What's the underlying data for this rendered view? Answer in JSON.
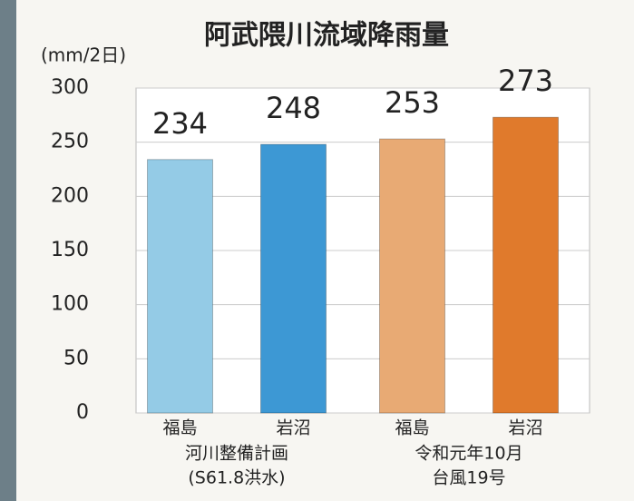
{
  "chart_data": {
    "type": "bar",
    "title": "阿武隈川流域降雨量",
    "y_unit": "(mm/2日)",
    "categories": [
      "福島",
      "岩沼",
      "福島",
      "岩沼"
    ],
    "values": [
      234,
      248,
      253,
      273
    ],
    "colors": [
      "#94cbe6",
      "#3d98d4",
      "#e8aa74",
      "#e07a2c"
    ],
    "groups": [
      [
        "河川整備計画",
        "(S61.8洪水)"
      ],
      [
        "令和元年10月",
        "台風19号"
      ]
    ],
    "ylim": [
      0,
      300
    ],
    "yticks": [
      0,
      50,
      100,
      150,
      200,
      250,
      300
    ],
    "grid": true
  }
}
